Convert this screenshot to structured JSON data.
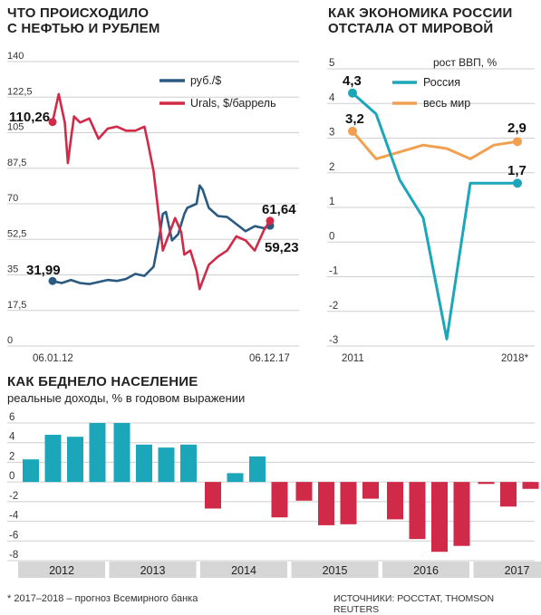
{
  "colors": {
    "rub": "#2a5a80",
    "urals": "#d02a48",
    "russia": "#1ba6ba",
    "world": "#f0a050",
    "income_pos": "#1ba6ba",
    "income_neg": "#d02a48",
    "grid": "#cfcfcf",
    "year_band": "#d6d6d6"
  },
  "oil": {
    "title_line1": "ЧТО ПРОИСХОДИЛО",
    "title_line2": "С НЕФТЬЮ И РУБЛЕМ",
    "legend": [
      "руб./$",
      "Urals, $/баррель"
    ],
    "x_start_label": "06.01.12",
    "x_end_label": "06.12.17",
    "start_labels": {
      "urals": "110,26",
      "rub": "31,99"
    },
    "end_labels": {
      "urals": "61,64",
      "rub": "59,23"
    }
  },
  "gdp": {
    "title_line1": "КАК ЭКОНОМИКА РОССИИ",
    "title_line2": "ОТСТАЛА ОТ МИРОВОЙ",
    "unit_label": "рост ВВП, %",
    "legend": [
      "Россия",
      "весь мир"
    ],
    "x_labels": [
      "2011",
      "2018*"
    ],
    "annotations": {
      "russia_start": "4,3",
      "russia_end": "1,7",
      "world_start": "3,2",
      "world_end": "2,9"
    }
  },
  "income": {
    "title": "КАК БЕДНЕЛО НАСЕЛЕНИЕ",
    "subtitle": "реальные доходы, % в годовом выражении"
  },
  "footer": {
    "note": "* 2017–2018 – прогноз Всемирного банка",
    "sources": "ИСТОЧНИКИ: РОССТАТ, THOMSON REUTERS"
  },
  "chart_data": [
    {
      "type": "line",
      "ylim": [
        0,
        140
      ],
      "y_ticks": [
        "0",
        "17,5",
        "35",
        "52,5",
        "70",
        "87,5",
        "105",
        "122,5",
        "140"
      ],
      "series": [
        {
          "name": "руб./$",
          "x": [
            "2012-01",
            "2012-04",
            "2012-07",
            "2012-10",
            "2013-01",
            "2013-04",
            "2013-07",
            "2013-10",
            "2014-01",
            "2014-04",
            "2014-07",
            "2014-10",
            "2014-12",
            "2015-01",
            "2015-02",
            "2015-04",
            "2015-06",
            "2015-08",
            "2015-09",
            "2015-12",
            "2016-01",
            "2016-02",
            "2016-04",
            "2016-07",
            "2016-10",
            "2017-01",
            "2017-04",
            "2017-07",
            "2017-10",
            "2017-12"
          ],
          "values": [
            31.99,
            31.0,
            32.5,
            31.0,
            30.5,
            31.5,
            32.5,
            32.0,
            33.0,
            35.5,
            34.5,
            39.0,
            55.0,
            65.0,
            66.0,
            52.0,
            55.0,
            65.0,
            68.0,
            70.0,
            79.0,
            77.0,
            68.0,
            64.0,
            63.5,
            60.0,
            56.5,
            59.0,
            58.0,
            59.23
          ]
        },
        {
          "name": "Urals, $/баррель",
          "x": [
            "2012-01",
            "2012-03",
            "2012-05",
            "2012-06",
            "2012-07",
            "2012-08",
            "2012-10",
            "2013-01",
            "2013-04",
            "2013-07",
            "2013-10",
            "2014-01",
            "2014-04",
            "2014-07",
            "2014-08",
            "2014-10",
            "2014-12",
            "2015-01",
            "2015-03",
            "2015-05",
            "2015-07",
            "2015-08",
            "2015-10",
            "2015-12",
            "2016-01",
            "2016-02",
            "2016-04",
            "2016-07",
            "2016-10",
            "2017-01",
            "2017-04",
            "2017-07",
            "2017-10",
            "2017-12"
          ],
          "values": [
            110.26,
            124.0,
            110.0,
            90.0,
            102.0,
            113.0,
            110.0,
            112.0,
            102.0,
            107.0,
            108.0,
            106.0,
            106.0,
            108.0,
            101.0,
            86.0,
            60.0,
            47.0,
            55.0,
            63.0,
            56.0,
            45.0,
            47.0,
            37.0,
            28.0,
            32.0,
            40.0,
            44.0,
            47.0,
            54.0,
            52.0,
            47.0,
            57.0,
            61.64
          ]
        }
      ]
    },
    {
      "type": "line",
      "ylim": [
        -3,
        5
      ],
      "y_ticks": [
        "5",
        "4",
        "3",
        "2",
        "1",
        "0",
        "-1",
        "-2",
        "-3"
      ],
      "x": [
        "2011",
        "2012",
        "2013",
        "2014",
        "2015",
        "2016",
        "2017",
        "2018*"
      ],
      "series": [
        {
          "name": "Россия",
          "values": [
            4.3,
            3.7,
            1.8,
            0.7,
            -2.8,
            1.7,
            1.7,
            1.7
          ]
        },
        {
          "name": "весь мир",
          "values": [
            3.2,
            2.4,
            2.6,
            2.8,
            2.7,
            2.4,
            2.8,
            2.9
          ]
        }
      ]
    },
    {
      "type": "bar",
      "ylim": [
        -8,
        6
      ],
      "y_ticks": [
        "6",
        "4",
        "2",
        "0",
        "-2",
        "-4",
        "-6",
        "-8"
      ],
      "year_labels": [
        "2012",
        "2013",
        "2014",
        "2015",
        "2016",
        "2017"
      ],
      "categories": [
        "2012-01",
        "2012-02",
        "2012-03",
        "2012-04",
        "2012-05",
        "2013-01",
        "2013-02",
        "2013-03",
        "2013-04",
        "2014-01",
        "2014-02",
        "2014-03",
        "2014-04",
        "2015-01",
        "2015-02",
        "2015-03",
        "2015-04",
        "2016-01",
        "2016-02",
        "2016-03",
        "2016-04",
        "2017-01",
        "2017-02",
        "2017-03"
      ],
      "values": [
        2.3,
        4.8,
        4.6,
        6.0,
        0,
        6.0,
        3.8,
        3.5,
        3.8,
        -2.7,
        0.9,
        2.6,
        -3.6,
        -1.9,
        -4.4,
        -4.3,
        -1.7,
        -3.8,
        -5.8,
        -7.1,
        -6.5,
        -0.2,
        -2.5,
        -0.7
      ]
    }
  ]
}
